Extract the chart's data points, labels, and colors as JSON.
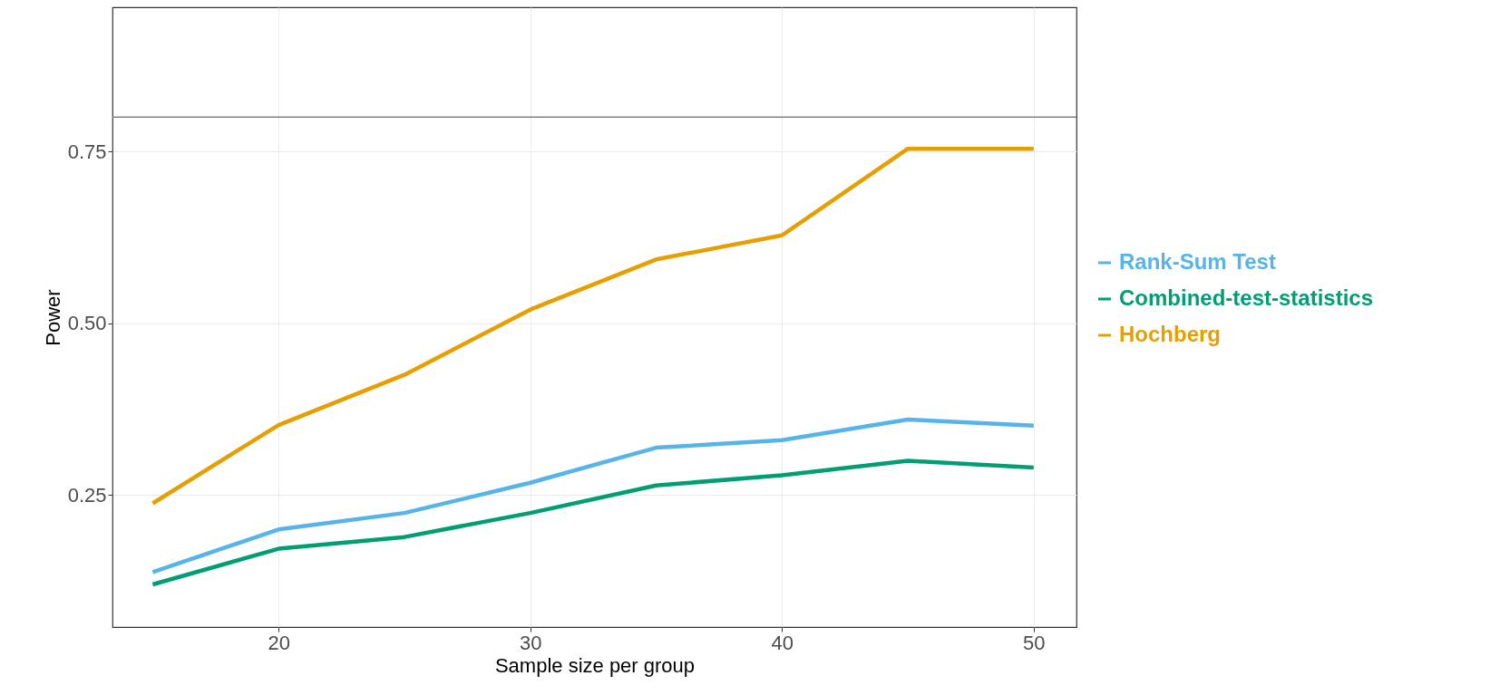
{
  "chart_data": {
    "type": "line",
    "xlabel": "Sample size per group",
    "ylabel": "Power",
    "x": [
      15,
      20,
      25,
      30,
      35,
      40,
      45,
      50
    ],
    "series": [
      {
        "name": "Rank-Sum Test",
        "color": "#56b4e9",
        "values": [
          0.138,
          0.2,
          0.224,
          0.268,
          0.319,
          0.33,
          0.36,
          0.351
        ]
      },
      {
        "name": "Combined-test-statistics",
        "color": "#009e73",
        "values": [
          0.12,
          0.172,
          0.189,
          0.224,
          0.264,
          0.279,
          0.3,
          0.29
        ]
      },
      {
        "name": "Hochberg",
        "color": "#e69f00",
        "values": [
          0.238,
          0.352,
          0.425,
          0.52,
          0.593,
          0.628,
          0.754,
          0.754
        ]
      }
    ],
    "xlim": [
      13.4,
      51.7
    ],
    "xticks": [
      20,
      30,
      40,
      50
    ],
    "ylim": [
      0.058,
      0.96
    ],
    "yticks": [
      {
        "value": 0.25,
        "label": "0.25"
      },
      {
        "value": 0.5,
        "label": "0.50"
      },
      {
        "value": 0.75,
        "label": "0.75"
      }
    ],
    "ref_lines": [
      {
        "axis": "y",
        "value": 0.8,
        "color": "#808080"
      }
    ],
    "grid": true,
    "legend": "right",
    "line_style": "solid"
  }
}
